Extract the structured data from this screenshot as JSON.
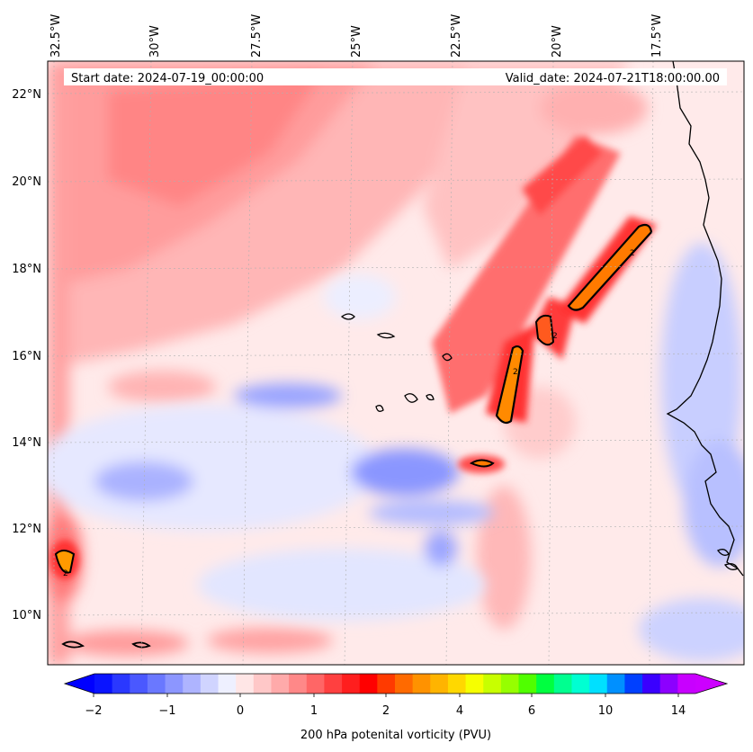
{
  "header": {
    "start_label": "Start date: 2024-07-19_00:00:00",
    "valid_label": "Valid_date: 2024-07-21T18:00:00.00"
  },
  "axes": {
    "lon_labels": [
      "32.5°W",
      "30°W",
      "27.5°W",
      "25°W",
      "22.5°W",
      "20°W",
      "17.5°W"
    ],
    "lat_labels": [
      "22°N",
      "20°N",
      "18°N",
      "16°N",
      "14°N",
      "12°N",
      "10°N"
    ]
  },
  "colorbar": {
    "title": "200 hPa potenital vorticity (PVU)",
    "tick_labels": [
      "−2",
      "−1",
      "0",
      "1",
      "2",
      "4",
      "6",
      "10",
      "14"
    ],
    "colors": [
      "#0a14ff",
      "#2a38ff",
      "#4a58ff",
      "#6a78ff",
      "#8c96ff",
      "#aeb4ff",
      "#d0d4ff",
      "#eef0ff",
      "#ffe6e6",
      "#ffc8c8",
      "#ffaaaa",
      "#ff8888",
      "#ff6666",
      "#ff4040",
      "#ff1e1e",
      "#ff0000",
      "#ff3a00",
      "#ff6a00",
      "#ff9200",
      "#ffb400",
      "#ffd800",
      "#f6ff00",
      "#c8ff00",
      "#96ff00",
      "#50ff00",
      "#00ff40",
      "#00ff90",
      "#00ffd2",
      "#00e0ff",
      "#0090ff",
      "#0040ff",
      "#3a00ff",
      "#8c00ff",
      "#c800ff"
    ],
    "under_color": "#0000ff",
    "over_color": "#cc00ff"
  }
}
